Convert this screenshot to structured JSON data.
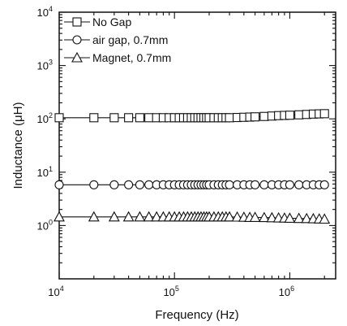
{
  "chart_data": {
    "type": "scatter",
    "xlabel": "Frequency (Hz)",
    "ylabel": "Inductance (μH)",
    "x_scale": "log",
    "y_scale": "log",
    "xlim": [
      10000,
      2500000
    ],
    "ylim": [
      0.1,
      10000
    ],
    "x_ticks": [
      {
        "value": 10000,
        "base": "10",
        "exp": "4"
      },
      {
        "value": 100000,
        "base": "10",
        "exp": "5"
      },
      {
        "value": 1000000,
        "base": "10",
        "exp": "6"
      }
    ],
    "y_ticks": [
      {
        "value": 1,
        "base": "10",
        "exp": "0"
      },
      {
        "value": 10,
        "base": "10",
        "exp": "1"
      },
      {
        "value": 100,
        "base": "10",
        "exp": "2"
      },
      {
        "value": 1000,
        "base": "10",
        "exp": "3"
      },
      {
        "value": 10000,
        "base": "10",
        "exp": "4"
      }
    ],
    "legend_position": "top-left",
    "grid": false,
    "x": [
      10000,
      20000,
      30000,
      40000,
      50000,
      60000,
      70000,
      80000,
      90000,
      100000,
      110000,
      120000,
      130000,
      140000,
      150000,
      160000,
      170000,
      180000,
      190000,
      200000,
      220000,
      240000,
      260000,
      280000,
      300000,
      350000,
      400000,
      450000,
      500000,
      600000,
      700000,
      800000,
      900000,
      1000000,
      1200000,
      1400000,
      1600000,
      1800000,
      2000000
    ],
    "series": [
      {
        "name": "No Gap",
        "marker": "square",
        "values": [
          105,
          105,
          105,
          105,
          105,
          105,
          105,
          105,
          105,
          105,
          105,
          105,
          105,
          105,
          105,
          105,
          105,
          105,
          105,
          105,
          105,
          105,
          105,
          105,
          105,
          106,
          107,
          108,
          109,
          111,
          113,
          115,
          116,
          117,
          119,
          121,
          123,
          124,
          125
        ]
      },
      {
        "name": "air gap, 0.7mm",
        "marker": "circle",
        "values": [
          5.8,
          5.8,
          5.8,
          5.8,
          5.8,
          5.8,
          5.8,
          5.8,
          5.8,
          5.8,
          5.8,
          5.8,
          5.8,
          5.8,
          5.8,
          5.8,
          5.8,
          5.8,
          5.8,
          5.8,
          5.8,
          5.8,
          5.8,
          5.8,
          5.8,
          5.8,
          5.8,
          5.8,
          5.8,
          5.8,
          5.8,
          5.8,
          5.8,
          5.8,
          5.8,
          5.8,
          5.8,
          5.8,
          5.8
        ]
      },
      {
        "name": "Magnet, 0.7mm",
        "marker": "triangle",
        "values": [
          1.45,
          1.45,
          1.45,
          1.45,
          1.45,
          1.45,
          1.45,
          1.45,
          1.45,
          1.45,
          1.45,
          1.45,
          1.45,
          1.45,
          1.45,
          1.45,
          1.45,
          1.45,
          1.45,
          1.45,
          1.45,
          1.45,
          1.45,
          1.45,
          1.45,
          1.44,
          1.43,
          1.42,
          1.42,
          1.41,
          1.4,
          1.39,
          1.38,
          1.37,
          1.36,
          1.35,
          1.34,
          1.33,
          1.32
        ]
      }
    ]
  }
}
